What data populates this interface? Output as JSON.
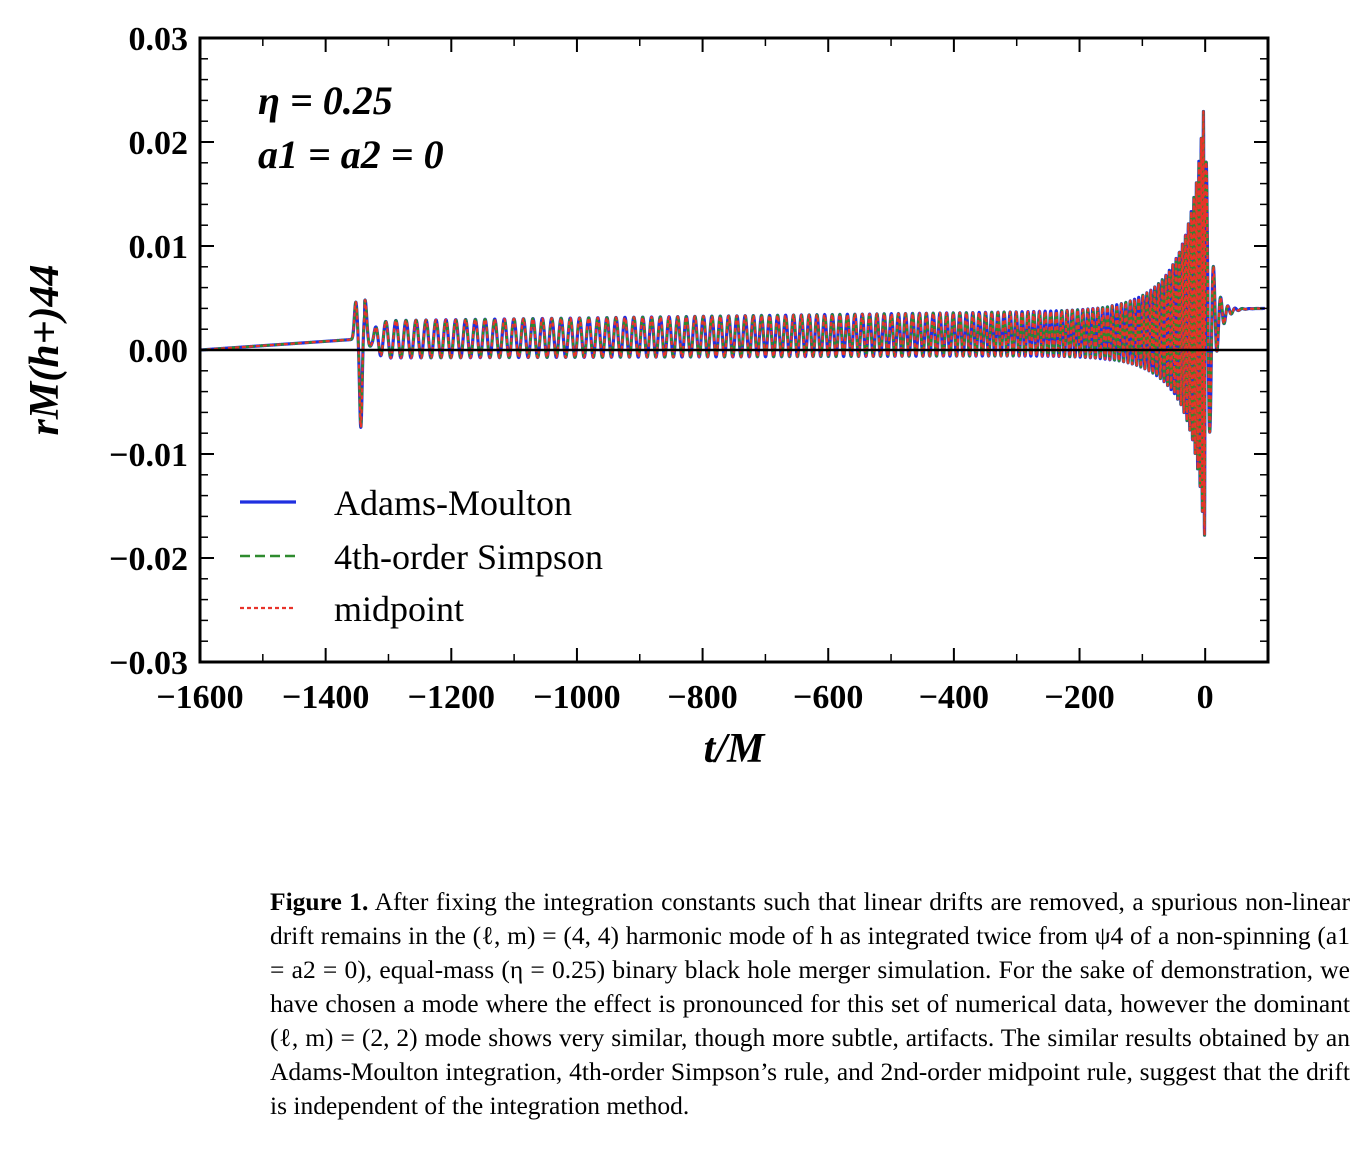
{
  "chart_data": {
    "type": "line",
    "xlabel": "t/M",
    "ylabel": "rM(h+)44",
    "xlim": [
      -1600,
      100
    ],
    "ylim": [
      -0.03,
      0.03
    ],
    "xticks": [
      -1600,
      -1400,
      -1200,
      -1000,
      -800,
      -600,
      -400,
      -200,
      0
    ],
    "xtick_labels": [
      "−1600",
      "−1400",
      "−1200",
      "−1000",
      "−800",
      "−600",
      "−400",
      "−200",
      "0"
    ],
    "yticks": [
      -0.03,
      -0.02,
      -0.01,
      0.0,
      0.01,
      0.02,
      0.03
    ],
    "ytick_labels": [
      "−0.03",
      "−0.02",
      "−0.01",
      "0.00",
      "0.01",
      "0.02",
      "0.03"
    ],
    "annotations": [
      "η = 0.25",
      "a1 = a2 = 0"
    ],
    "legend_position": "lower-left",
    "grid": false,
    "zero_line": true,
    "series": [
      {
        "name": "Adams-Moulton",
        "color": "#1f2fe0",
        "style": "solid"
      },
      {
        "name": "4th-order Simpson",
        "color": "#2e8b2e",
        "style": "dashed"
      },
      {
        "name": "midpoint",
        "color": "#e8332a",
        "style": "dotted"
      }
    ],
    "key_points": {
      "x": [
        -1600,
        -1360,
        -1350,
        -1345,
        -1340,
        -1300,
        -1000,
        -600,
        -300,
        -100,
        -20,
        0,
        5,
        40,
        100
      ],
      "y": [
        0.0,
        0.001,
        0.0048,
        -0.0073,
        0.003,
        0.0015,
        0.0015,
        0.002,
        0.0025,
        0.003,
        0.005,
        0.025,
        -0.018,
        0.004,
        0.004
      ]
    }
  },
  "caption": {
    "label": "Figure 1.",
    "text": "After fixing the integration constants such that linear drifts are removed, a spurious non-linear drift remains in the (ℓ, m) = (4, 4) harmonic mode of h as integrated twice from ψ4 of a non-spinning (a1 = a2 = 0), equal-mass (η = 0.25) binary black hole merger simulation. For the sake of demonstration, we have chosen a mode where the effect is pronounced for this set of numerical data, however the dominant (ℓ, m) = (2, 2) mode shows very similar, though more subtle, artifacts. The similar results obtained by an Adams-Moulton integration, 4th-order Simpson’s rule, and 2nd-order midpoint rule, suggest that the drift is independent of the integration method."
  }
}
